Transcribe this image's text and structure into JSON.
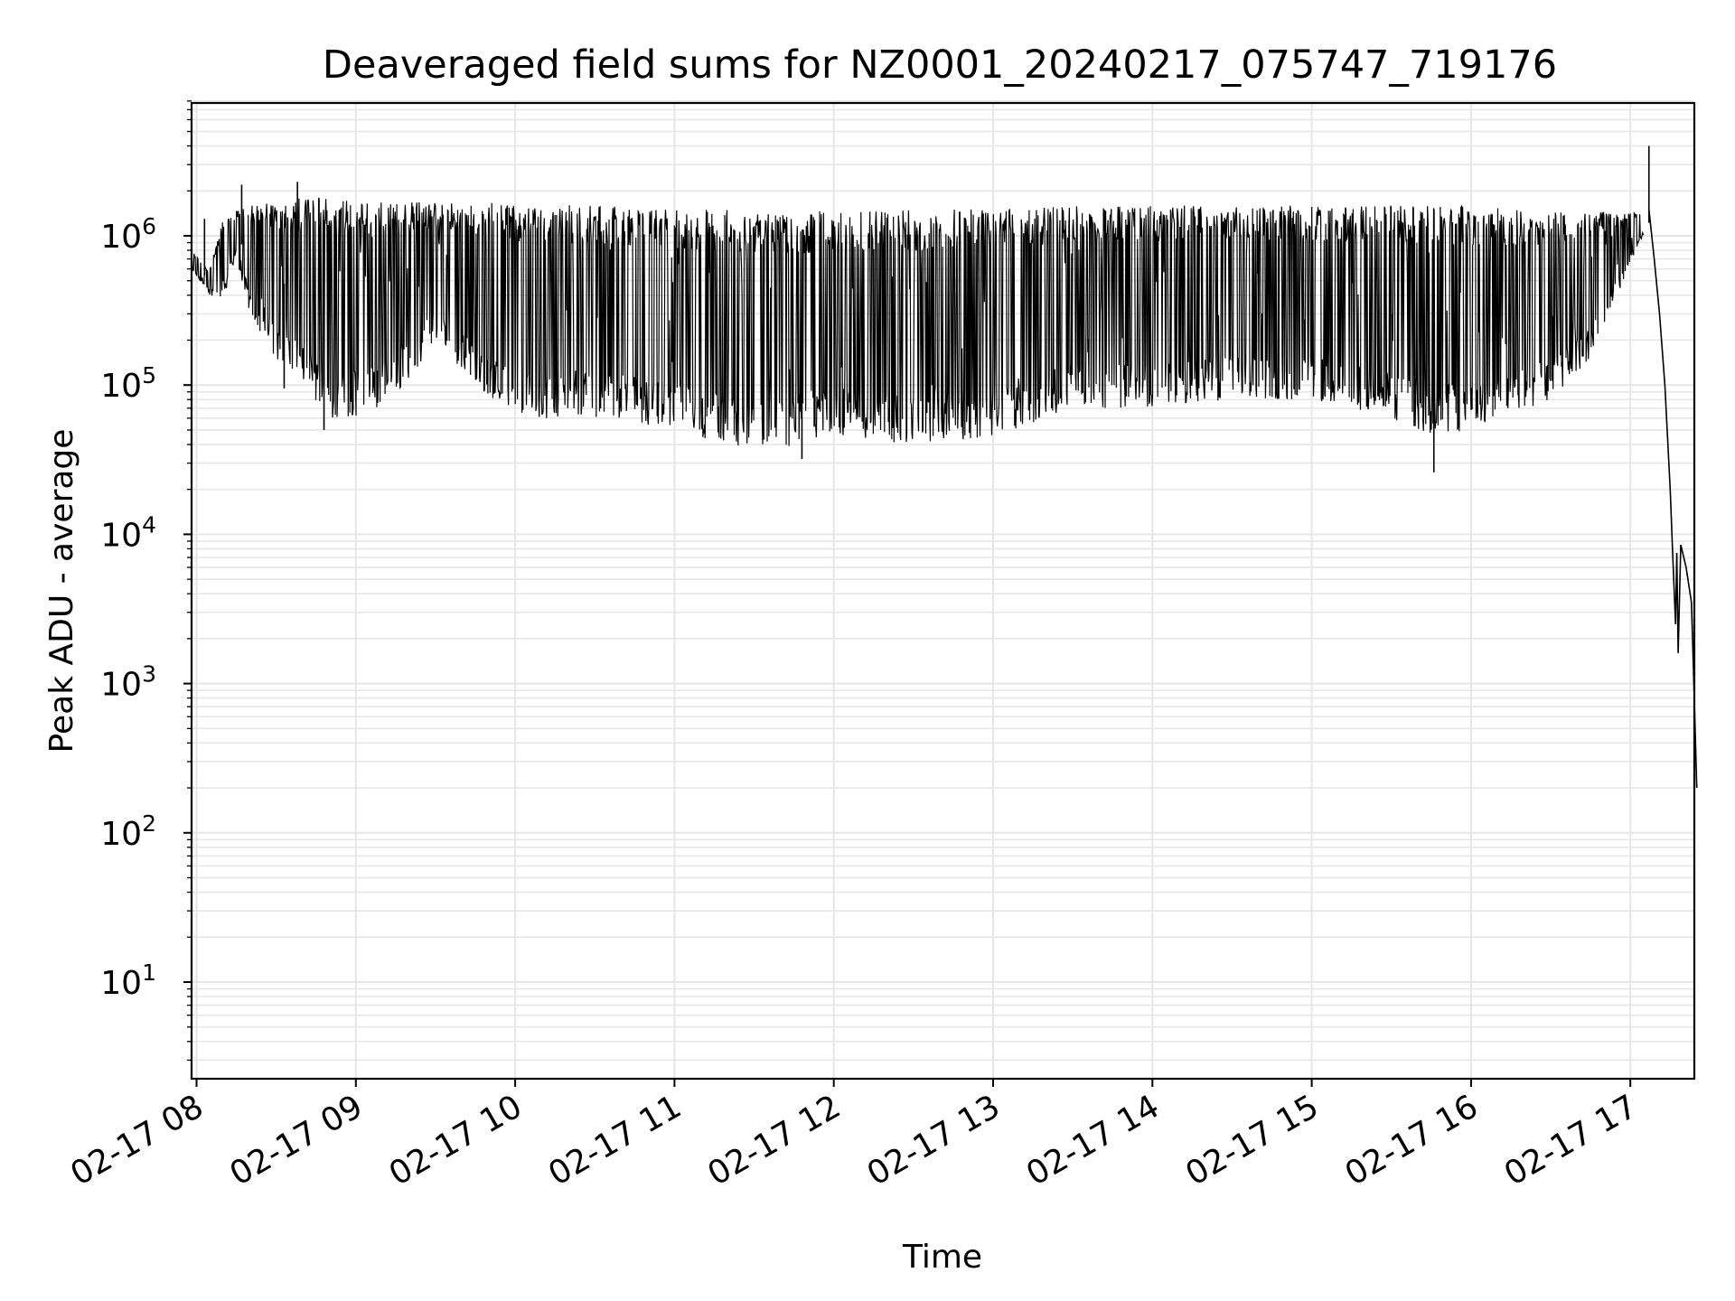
{
  "chart_data": {
    "type": "line",
    "title": "Deaveraged field sums for NZ0001_20240217_075747_719176",
    "xlabel": "Time",
    "ylabel": "Peak ADU - average",
    "yscale": "log",
    "ylim": [
      2.3,
      8000000
    ],
    "grid": true,
    "legend": "none",
    "line_color": "#000000",
    "grid_color": "#e6e6e6",
    "x_ticks": [
      "02-17 08",
      "02-17 09",
      "02-17 10",
      "02-17 11",
      "02-17 12",
      "02-17 13",
      "02-17 14",
      "02-17 15",
      "02-17 16",
      "02-17 17"
    ],
    "y_ticks": [
      {
        "base": "10",
        "exp": "1",
        "value": 10
      },
      {
        "base": "10",
        "exp": "2",
        "value": 100
      },
      {
        "base": "10",
        "exp": "3",
        "value": 1000
      },
      {
        "base": "10",
        "exp": "4",
        "value": 10000
      },
      {
        "base": "10",
        "exp": "5",
        "value": 100000
      },
      {
        "base": "10",
        "exp": "6",
        "value": 1000000
      }
    ],
    "series": [
      {
        "x_start": "2024-02-17 07:58",
        "x_end": "2024-02-17 17:25",
        "envelope": [
          {
            "t": "07:58",
            "low": 600000,
            "high": 800000
          },
          {
            "t": "08:05",
            "low": 400000,
            "high": 600000
          },
          {
            "t": "08:10",
            "low": 380000,
            "high": 1300000
          },
          {
            "t": "08:15",
            "low": 700000,
            "high": 1500000
          },
          {
            "t": "08:20",
            "low": 300000,
            "high": 1600000
          },
          {
            "t": "08:30",
            "low": 150000,
            "high": 1700000
          },
          {
            "t": "08:40",
            "low": 100000,
            "high": 1800000
          },
          {
            "t": "08:50",
            "low": 60000,
            "high": 1800000
          },
          {
            "t": "09:00",
            "low": 60000,
            "high": 1700000
          },
          {
            "t": "09:15",
            "low": 80000,
            "high": 1700000
          },
          {
            "t": "09:30",
            "low": 200000,
            "high": 1700000
          },
          {
            "t": "09:45",
            "low": 100000,
            "high": 1700000
          },
          {
            "t": "10:00",
            "low": 60000,
            "high": 1600000
          },
          {
            "t": "10:30",
            "low": 60000,
            "high": 1600000
          },
          {
            "t": "11:00",
            "low": 50000,
            "high": 1500000
          },
          {
            "t": "11:20",
            "low": 40000,
            "high": 1500000
          },
          {
            "t": "11:35",
            "low": 35000,
            "high": 1400000
          },
          {
            "t": "11:45",
            "low": 40000,
            "high": 1400000
          },
          {
            "t": "12:00",
            "low": 45000,
            "high": 1500000
          },
          {
            "t": "12:30",
            "low": 40000,
            "high": 1500000
          },
          {
            "t": "13:00",
            "low": 45000,
            "high": 1500000
          },
          {
            "t": "13:30",
            "low": 70000,
            "high": 1600000
          },
          {
            "t": "14:00",
            "low": 70000,
            "high": 1600000
          },
          {
            "t": "14:30",
            "low": 80000,
            "high": 1600000
          },
          {
            "t": "15:00",
            "low": 80000,
            "high": 1600000
          },
          {
            "t": "15:30",
            "low": 60000,
            "high": 1600000
          },
          {
            "t": "15:45",
            "low": 45000,
            "high": 1600000
          },
          {
            "t": "16:00",
            "low": 50000,
            "high": 1600000
          },
          {
            "t": "16:15",
            "low": 60000,
            "high": 1500000
          },
          {
            "t": "16:30",
            "low": 80000,
            "high": 1500000
          },
          {
            "t": "16:45",
            "low": 150000,
            "high": 1500000
          },
          {
            "t": "16:55",
            "low": 400000,
            "high": 1400000
          },
          {
            "t": "17:05",
            "low": 1000000,
            "high": 1500000
          }
        ],
        "spikes": [
          {
            "t": "08:03",
            "value": 1300000
          },
          {
            "t": "08:17",
            "value": 2200000
          },
          {
            "t": "08:33",
            "value": 95000
          },
          {
            "t": "08:38",
            "value": 2300000
          },
          {
            "t": "08:48",
            "value": 50000
          },
          {
            "t": "11:48",
            "value": 32000
          },
          {
            "t": "15:46",
            "value": 26000
          },
          {
            "t": "17:07",
            "value": 4000000
          }
        ],
        "tail": [
          {
            "t": "17:07",
            "value": 1500000
          },
          {
            "t": "17:09",
            "value": 700000
          },
          {
            "t": "17:11",
            "value": 300000
          },
          {
            "t": "17:13",
            "value": 100000
          },
          {
            "t": "17:15",
            "value": 20000
          },
          {
            "t": "17:16",
            "value": 7000
          },
          {
            "t": "17:17",
            "value": 2500
          },
          {
            "t": "17:17.5",
            "value": 7500
          },
          {
            "t": "17:18",
            "value": 1600
          },
          {
            "t": "17:19",
            "value": 8500
          },
          {
            "t": "17:21",
            "value": 6000
          },
          {
            "t": "17:23",
            "value": 3500
          },
          {
            "t": "17:24",
            "value": 900
          },
          {
            "t": "17:25",
            "value": 200
          }
        ]
      }
    ]
  }
}
